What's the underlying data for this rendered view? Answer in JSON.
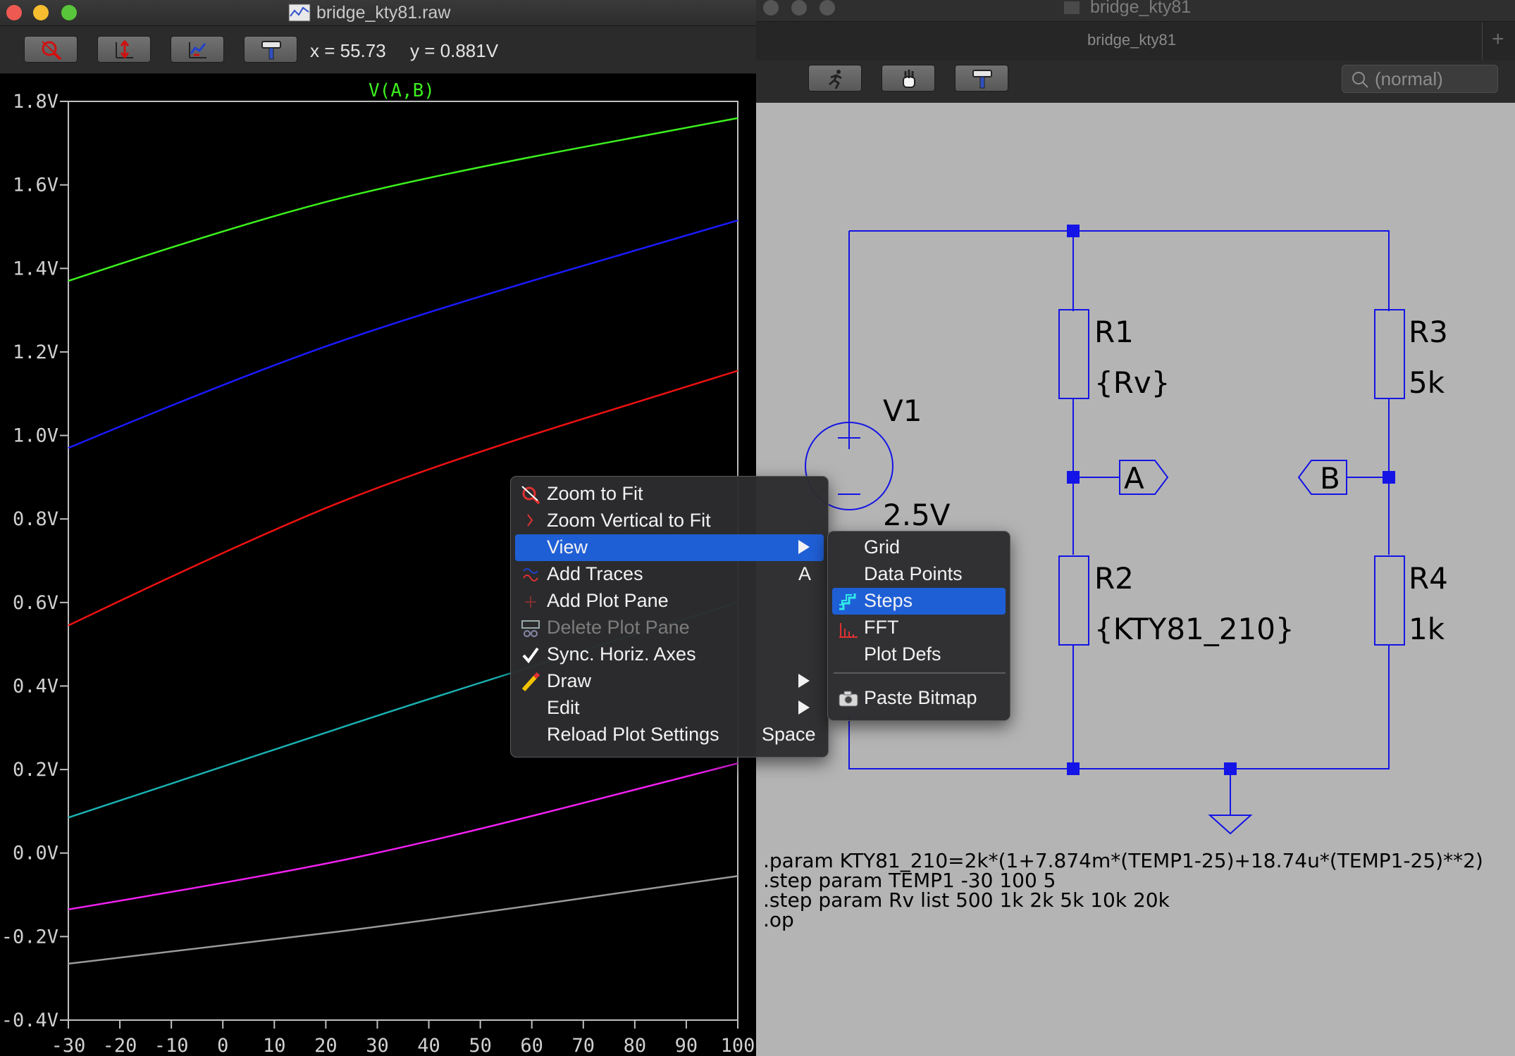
{
  "plot_window": {
    "title": "bridge_kty81.raw",
    "cursor_x": "x = 55.73",
    "cursor_y": "y = 0.881V",
    "toolbar_icons": [
      "zoom-to-fit-icon",
      "zoom-vertical-icon",
      "add-traces-icon",
      "hammer-icon"
    ]
  },
  "chart_data": {
    "type": "line",
    "title": "V(A,B)",
    "xlabel": "",
    "ylabel": "",
    "xlim": [
      -30,
      100
    ],
    "ylim": [
      -0.4,
      1.8
    ],
    "x_ticks": [
      "-30",
      "-20",
      "-10",
      "0",
      "10",
      "20",
      "30",
      "40",
      "50",
      "60",
      "70",
      "80",
      "90",
      "100"
    ],
    "y_ticks": [
      "-0.4V",
      "-0.2V",
      "0.0V",
      "0.2V",
      "0.4V",
      "0.6V",
      "0.8V",
      "1.0V",
      "1.2V",
      "1.4V",
      "1.6V",
      "1.8V"
    ],
    "grid": false,
    "x": [
      -30,
      5,
      40,
      100
    ],
    "series": [
      {
        "color": "#3cf01e",
        "values": [
          1.37,
          1.513,
          1.621,
          1.76
        ]
      },
      {
        "color": "#1a1aff",
        "values": [
          0.97,
          1.15,
          1.298,
          1.515
        ]
      },
      {
        "color": "#ee1111",
        "values": [
          0.545,
          0.752,
          0.925,
          1.155
        ]
      },
      {
        "color": "#1ab0b0",
        "values": [
          0.085,
          0.227,
          0.37,
          0.6
        ]
      },
      {
        "color": "#f020f0",
        "values": [
          -0.135,
          -0.063,
          0.025,
          0.215
        ]
      },
      {
        "color": "#9a9a9a",
        "values": [
          -0.265,
          -0.215,
          -0.161,
          -0.055
        ]
      }
    ]
  },
  "schematic_window": {
    "title": "bridge_kty81",
    "tab": "bridge_kty81",
    "search_placeholder": "(normal)",
    "components": {
      "r1_name": "R1",
      "r1_value": "{Rv}",
      "r2_name": "R2",
      "r2_value": "{KTY81_210}",
      "r3_name": "R3",
      "r3_value": "5k",
      "r4_name": "R4",
      "r4_value": "1k",
      "v1_name": "V1",
      "v1_value": "2.5V",
      "label_a": "A",
      "label_b": "B"
    },
    "directives": [
      ".param KTY81_210=2k*(1+7.874m*(TEMP1-25)+18.74u*(TEMP1-25)**2)",
      ".step param TEMP1 -30 100 5",
      ".step param Rv list 500 1k 2k 5k 10k 20k",
      ".op"
    ],
    "wire_color": "#1414e6"
  },
  "context_menu": {
    "items": [
      {
        "label": "Zoom to Fit",
        "icon": "zoom-to-fit-icon"
      },
      {
        "label": "Zoom Vertical to Fit",
        "icon": "zoom-vertical-icon"
      },
      {
        "label": "View",
        "submenu": true
      },
      {
        "label": "Add Traces",
        "shortcut": "A",
        "icon": "add-traces-icon"
      },
      {
        "label": "Add Plot Pane",
        "icon": "add-plot-pane-icon"
      },
      {
        "label": "Delete Plot Pane",
        "disabled": true,
        "icon": "delete-plot-pane-icon"
      },
      {
        "label": "Sync. Horiz. Axes",
        "checked": true
      },
      {
        "label": "Draw",
        "submenu": true,
        "icon": "pencil-icon"
      },
      {
        "label": "Edit",
        "submenu": true
      },
      {
        "label": "Reload Plot Settings",
        "shortcut": "Space"
      }
    ]
  },
  "view_submenu": {
    "items": [
      {
        "label": "Grid"
      },
      {
        "label": "Data Points"
      },
      {
        "label": "Steps",
        "icon": "steps-icon"
      },
      {
        "label": "FFT",
        "icon": "fft-icon"
      },
      {
        "label": "Plot Defs"
      },
      {
        "label": "Paste Bitmap",
        "icon": "camera-icon"
      }
    ]
  }
}
